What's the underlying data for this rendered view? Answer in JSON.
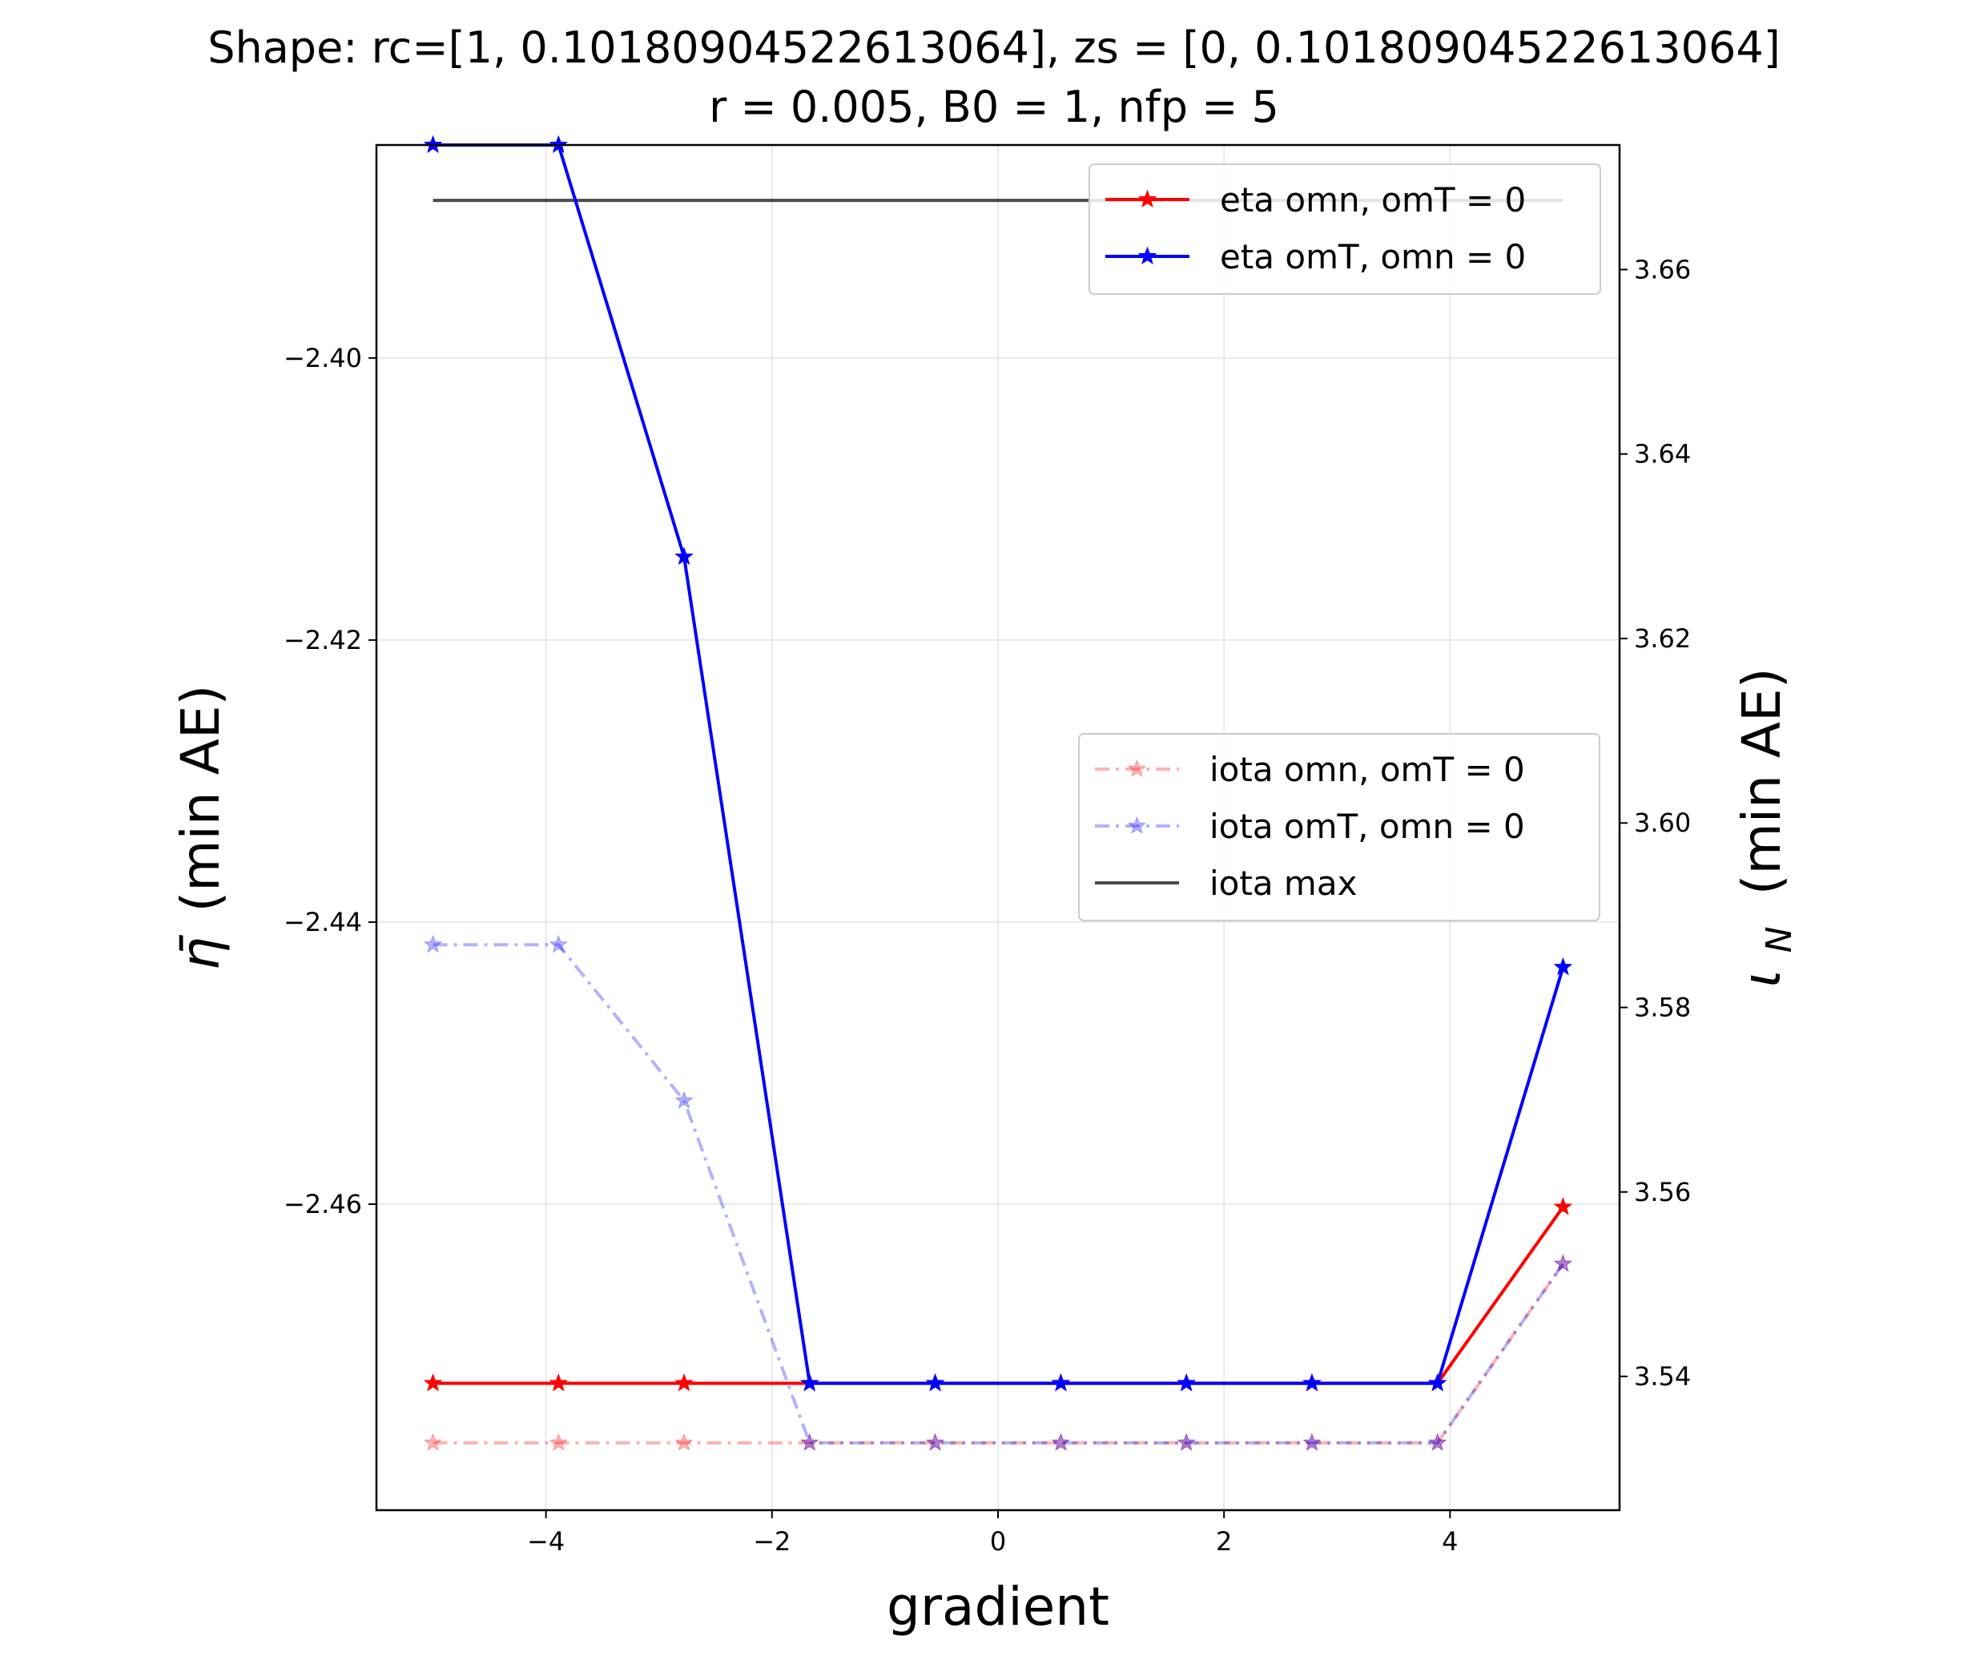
{
  "chart_data": {
    "type": "line",
    "title": "Shape: rc=[1, 0.10180904522613064], zs = [0, 0.10180904522613064]",
    "subtitle": "r = 0.005, B0 = 1, nfp = 5",
    "xlabel": "gradient",
    "ylabel_left": "η̄ (min AE)",
    "ylabel_right": "ι_N (min AE)",
    "x": [
      -5.0,
      -3.889,
      -2.778,
      -1.667,
      -0.556,
      0.556,
      1.667,
      2.778,
      3.889,
      5.0
    ],
    "xlim": [
      -5.5,
      5.5
    ],
    "ylim_left": [
      -2.4817,
      -2.3849
    ],
    "ylim_right": [
      3.5255,
      3.6735
    ],
    "x_ticks": [
      -4,
      -2,
      0,
      2,
      4
    ],
    "x_tick_labels": [
      "−4",
      "−2",
      "0",
      "2",
      "4"
    ],
    "y_left_ticks": [
      -2.4,
      -2.42,
      -2.44,
      -2.46
    ],
    "y_left_tick_labels": [
      "−2.40",
      "−2.42",
      "−2.44",
      "−2.46"
    ],
    "y_right_ticks": [
      3.54,
      3.56,
      3.58,
      3.6,
      3.62,
      3.64,
      3.66
    ],
    "y_right_tick_labels": [
      "3.54",
      "3.56",
      "3.58",
      "3.60",
      "3.62",
      "3.64",
      "3.66"
    ],
    "grid": true,
    "series": [
      {
        "name": "eta omn, omT = 0",
        "axis": "left",
        "color": "#ff0000",
        "style": "solid",
        "marker": "star",
        "alpha": 1.0,
        "values": [
          -2.4727,
          -2.4727,
          -2.4727,
          -2.4727,
          -2.4727,
          -2.4727,
          -2.4727,
          -2.4727,
          -2.4727,
          -2.4602
        ]
      },
      {
        "name": "eta omT, omn = 0",
        "axis": "left",
        "color": "#0000ff",
        "style": "solid",
        "marker": "star",
        "alpha": 1.0,
        "values": [
          -2.3849,
          -2.3849,
          -2.4141,
          -2.4727,
          -2.4727,
          -2.4727,
          -2.4727,
          -2.4727,
          -2.4727,
          -2.4432
        ]
      },
      {
        "name": "iota omn, omT = 0",
        "axis": "right",
        "color": "#ff0000",
        "style": "dashdot",
        "marker": "star",
        "alpha": 0.3,
        "values": [
          3.5328,
          3.5328,
          3.5328,
          3.5328,
          3.5328,
          3.5328,
          3.5328,
          3.5328,
          3.5328,
          3.5522
        ]
      },
      {
        "name": "iota omT, omn = 0",
        "axis": "right",
        "color": "#0000ff",
        "style": "dashdot",
        "marker": "star",
        "alpha": 0.3,
        "values": [
          3.5868,
          3.5868,
          3.5699,
          3.5328,
          3.5328,
          3.5328,
          3.5328,
          3.5328,
          3.5328,
          3.5522
        ]
      },
      {
        "name": "iota max",
        "axis": "right",
        "color": "#000000",
        "style": "solid",
        "marker": "none",
        "alpha": 0.7,
        "values": [
          3.6675,
          3.6675,
          3.6675,
          3.6675,
          3.6675,
          3.6675,
          3.6675,
          3.6675,
          3.6675,
          3.6675
        ]
      }
    ],
    "legends": [
      {
        "placement": "upper-right",
        "series": [
          "eta omn, omT = 0",
          "eta omT, omn = 0"
        ]
      },
      {
        "placement": "center-right",
        "series": [
          "iota omn, omT = 0",
          "iota omT, omn = 0",
          "iota max"
        ]
      }
    ]
  }
}
